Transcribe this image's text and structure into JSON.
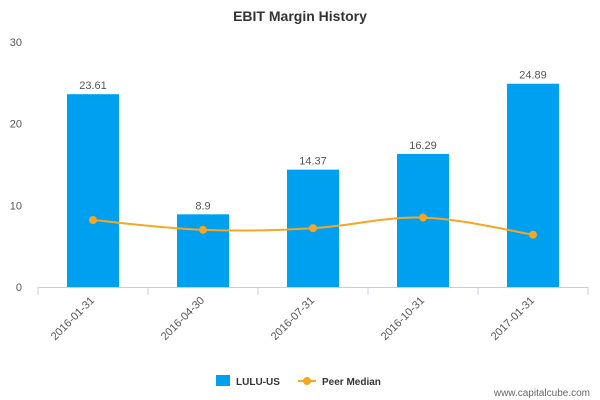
{
  "chart_data": {
    "type": "bar",
    "title": "EBIT Margin History",
    "categories": [
      "2016-01-31",
      "2016-04-30",
      "2016-07-31",
      "2016-10-31",
      "2017-01-31"
    ],
    "series": [
      {
        "name": "LULU-US",
        "type": "bar",
        "color": "#00a0f0",
        "values": [
          23.61,
          8.9,
          14.37,
          16.29,
          24.89
        ],
        "data_labels": [
          "23.61",
          "8.9",
          "14.37",
          "16.29",
          "24.89"
        ]
      },
      {
        "name": "Peer Median",
        "type": "line",
        "color": "#f5a623",
        "values": [
          8.2,
          7.0,
          7.2,
          8.5,
          6.4
        ]
      }
    ],
    "ylim": [
      0,
      30
    ],
    "yticks": [
      0,
      10,
      20,
      30
    ],
    "ytick_labels": [
      "0",
      "10",
      "20",
      "30"
    ],
    "xlabel": "",
    "ylabel": "",
    "grid": false,
    "legend_position": "bottom-center"
  },
  "credit": "www.capitalcube.com"
}
